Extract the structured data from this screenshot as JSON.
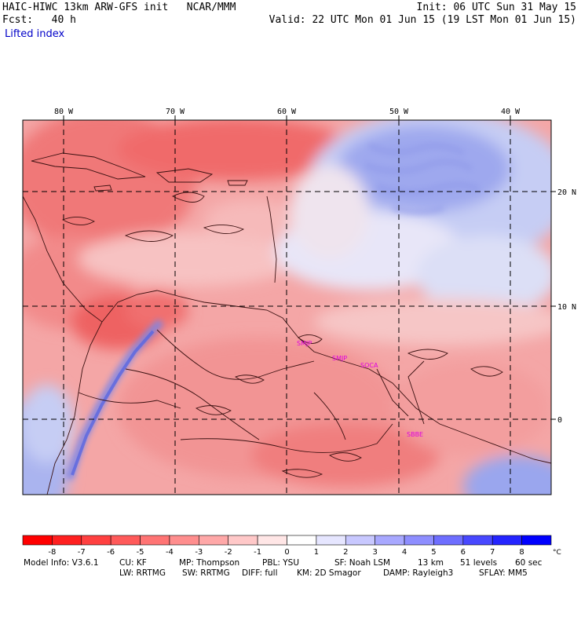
{
  "header": {
    "line1_left": "HAIC-HIWC 13km ARW-GFS init   NCAR/MMM",
    "line2_left": "Fcst:   40 h",
    "line1_right": "Init: 06 UTC Sun 31 May 15",
    "line2_right": "Valid: 22 UTC Mon 01 Jun 15 (19 LST Mon 01 Jun 15)",
    "field_name": "Lifted index"
  },
  "map": {
    "lon_labels": [
      "80 W",
      "70 W",
      "60 W",
      "50 W",
      "40 W"
    ],
    "lat_labels": [
      "20 N",
      "10 N",
      "0"
    ],
    "stations": [
      "SMJP",
      "SMJP",
      "SOCA",
      "SBBE"
    ],
    "colors": {
      "ocean_north_cool": "#a8b4f0",
      "land_warm": "#f08c8c",
      "frame": "#000000",
      "station_label": "#e000e0"
    }
  },
  "colorbar": {
    "tick_labels": [
      "-8",
      "-7",
      "-6",
      "-5",
      "-4",
      "-3",
      "-2",
      "-1",
      "0",
      "1",
      "2",
      "3",
      "4",
      "5",
      "6",
      "7",
      "8"
    ],
    "unit": "°C",
    "colors": [
      "#ff0000",
      "#ff2020",
      "#ff4040",
      "#ff5a5a",
      "#ff7474",
      "#ff8e8e",
      "#ffa8a8",
      "#ffc8c8",
      "#ffe6e6",
      "#ffffff",
      "#e6e6ff",
      "#c8c8ff",
      "#a8a8ff",
      "#8e8eff",
      "#6e6eff",
      "#4848ff",
      "#2424ff",
      "#0000ff"
    ]
  },
  "footer": {
    "row1": [
      "Model Info: V3.6.1",
      "CU: KF",
      "MP: Thompson",
      "PBL: YSU",
      "SF: Noah LSM",
      "13 km",
      "51 levels",
      "60 sec"
    ],
    "row2": [
      "LW: RRTMG",
      "SW: RRTMG",
      "DIFF: full",
      "KM: 2D Smagor",
      "DAMP: Rayleigh3",
      "SFLAY: MM5"
    ]
  }
}
